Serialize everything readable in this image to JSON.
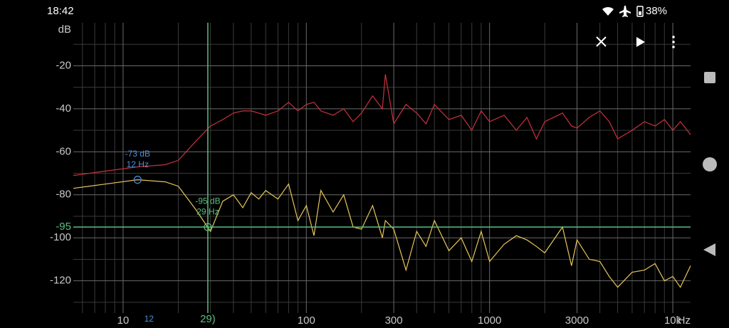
{
  "status_bar": {
    "time": "18:42",
    "battery": "38%"
  },
  "chart_data": {
    "type": "line",
    "x_log": true,
    "xlim": [
      5.35,
      12500
    ],
    "ylim": [
      -135,
      0
    ],
    "y_unit": "dB",
    "x_unit": "Hz",
    "xticks": [
      10,
      100,
      300,
      1000,
      3000,
      {
        "value": 10000,
        "label": "10k"
      }
    ],
    "xminor_ticks": [
      6,
      7,
      8,
      9,
      20,
      30,
      40,
      50,
      60,
      70,
      80,
      90,
      200,
      400,
      500,
      600,
      700,
      800,
      900,
      2000,
      4000,
      5000,
      6000,
      7000,
      8000,
      9000
    ],
    "yticks": [
      -20,
      -40,
      -60,
      -80,
      -100,
      -120
    ],
    "yminor_ticks": [
      -10,
      -30,
      -50,
      -70,
      -90,
      -110,
      -130
    ],
    "grid": true,
    "x": [
      5.35,
      8,
      12,
      17,
      20,
      25,
      30,
      35,
      40,
      45,
      50,
      55,
      60,
      70,
      80,
      90,
      100,
      110,
      120,
      140,
      160,
      180,
      200,
      230,
      260,
      270,
      300,
      350,
      400,
      450,
      500,
      600,
      700,
      800,
      900,
      1000,
      1200,
      1400,
      1600,
      1800,
      2000,
      2500,
      2800,
      3000,
      3500,
      4000,
      4500,
      5000,
      6000,
      7000,
      8000,
      9000,
      10000,
      11000,
      12500
    ],
    "series": [
      {
        "color": "#c8323f",
        "values": [
          -71,
          -69,
          -67,
          -66,
          -64,
          -55,
          -48,
          -45,
          -42,
          -41,
          -41,
          -42,
          -43,
          -41,
          -37,
          -41,
          -38,
          -37,
          -41,
          -43,
          -40,
          -46,
          -42,
          -34,
          -40,
          -24,
          -47,
          -38,
          -42,
          -47,
          -38,
          -45,
          -43,
          -50,
          -41,
          -46,
          -43,
          -50,
          -44,
          -54,
          -46,
          -42,
          -48,
          -49,
          -44,
          -41,
          -46,
          -54,
          -50,
          -46,
          -48,
          -45,
          -50,
          -46,
          -52
        ]
      },
      {
        "color": "#e8c65a",
        "values": [
          -77,
          -75,
          -73,
          -74,
          -76,
          -87,
          -97,
          -83,
          -80,
          -86,
          -79,
          -82,
          -78,
          -82,
          -75,
          -92,
          -85,
          -99,
          -78,
          -88,
          -80,
          -95,
          -96,
          -85,
          -100,
          -92,
          -96,
          -115,
          -97,
          -104,
          -92,
          -106,
          -100,
          -111,
          -97,
          -111,
          -103,
          -99,
          -101,
          -104,
          -107,
          -95,
          -113,
          -101,
          -110,
          -111,
          -118,
          -123,
          -116,
          -115,
          -112,
          -120,
          -118,
          -123,
          -113
        ]
      }
    ],
    "cursors": [
      {
        "x": 12,
        "y": -73,
        "color": "#4a8fd8",
        "labels": [
          "-73 dB",
          "12 Hz"
        ],
        "axis_label": "12",
        "crosshair": false
      },
      {
        "x": 29,
        "y": -95,
        "color": "#5cbf80",
        "labels": [
          "-95 dB",
          "29 Hz"
        ],
        "axis_label": "29)",
        "y_axis_label": "-95",
        "crosshair": true
      }
    ]
  }
}
